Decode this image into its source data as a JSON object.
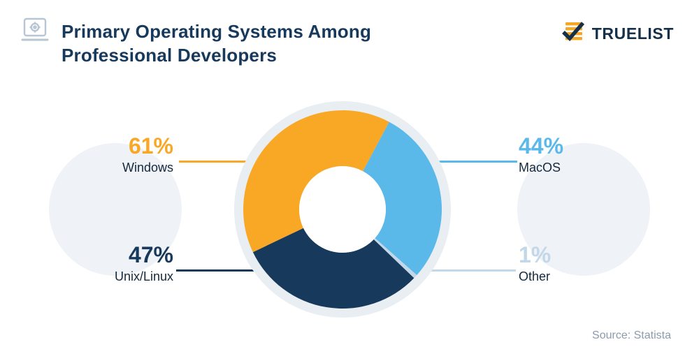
{
  "header": {
    "title_line1": "Primary Operating Systems Among",
    "title_line2": "Professional Developers"
  },
  "logo": {
    "brand": "TRUELIST"
  },
  "footer": {
    "source": "Source: Statista"
  },
  "chart_data": {
    "type": "pie",
    "variant": "donut",
    "title": "Primary Operating Systems Among Professional Developers",
    "unit": "%",
    "start_angle_deg": 28,
    "draw_order": [
      1,
      3,
      2,
      0
    ],
    "segments": [
      {
        "label": "Windows",
        "value": 61,
        "display": "61%",
        "color": "#F9A825"
      },
      {
        "label": "MacOS",
        "value": 44,
        "display": "44%",
        "color": "#5BB9E9"
      },
      {
        "label": "Unix/Linux",
        "value": 47,
        "display": "47%",
        "color": "#17395C"
      },
      {
        "label": "Other",
        "value": 1,
        "display": "1%",
        "color": "#C2D7E8"
      }
    ],
    "legend_position": "callout-labels",
    "colors": {
      "plate": "#E9EEF3",
      "hole": "#FFFFFF",
      "background_circles": "#EFF2F6"
    }
  }
}
